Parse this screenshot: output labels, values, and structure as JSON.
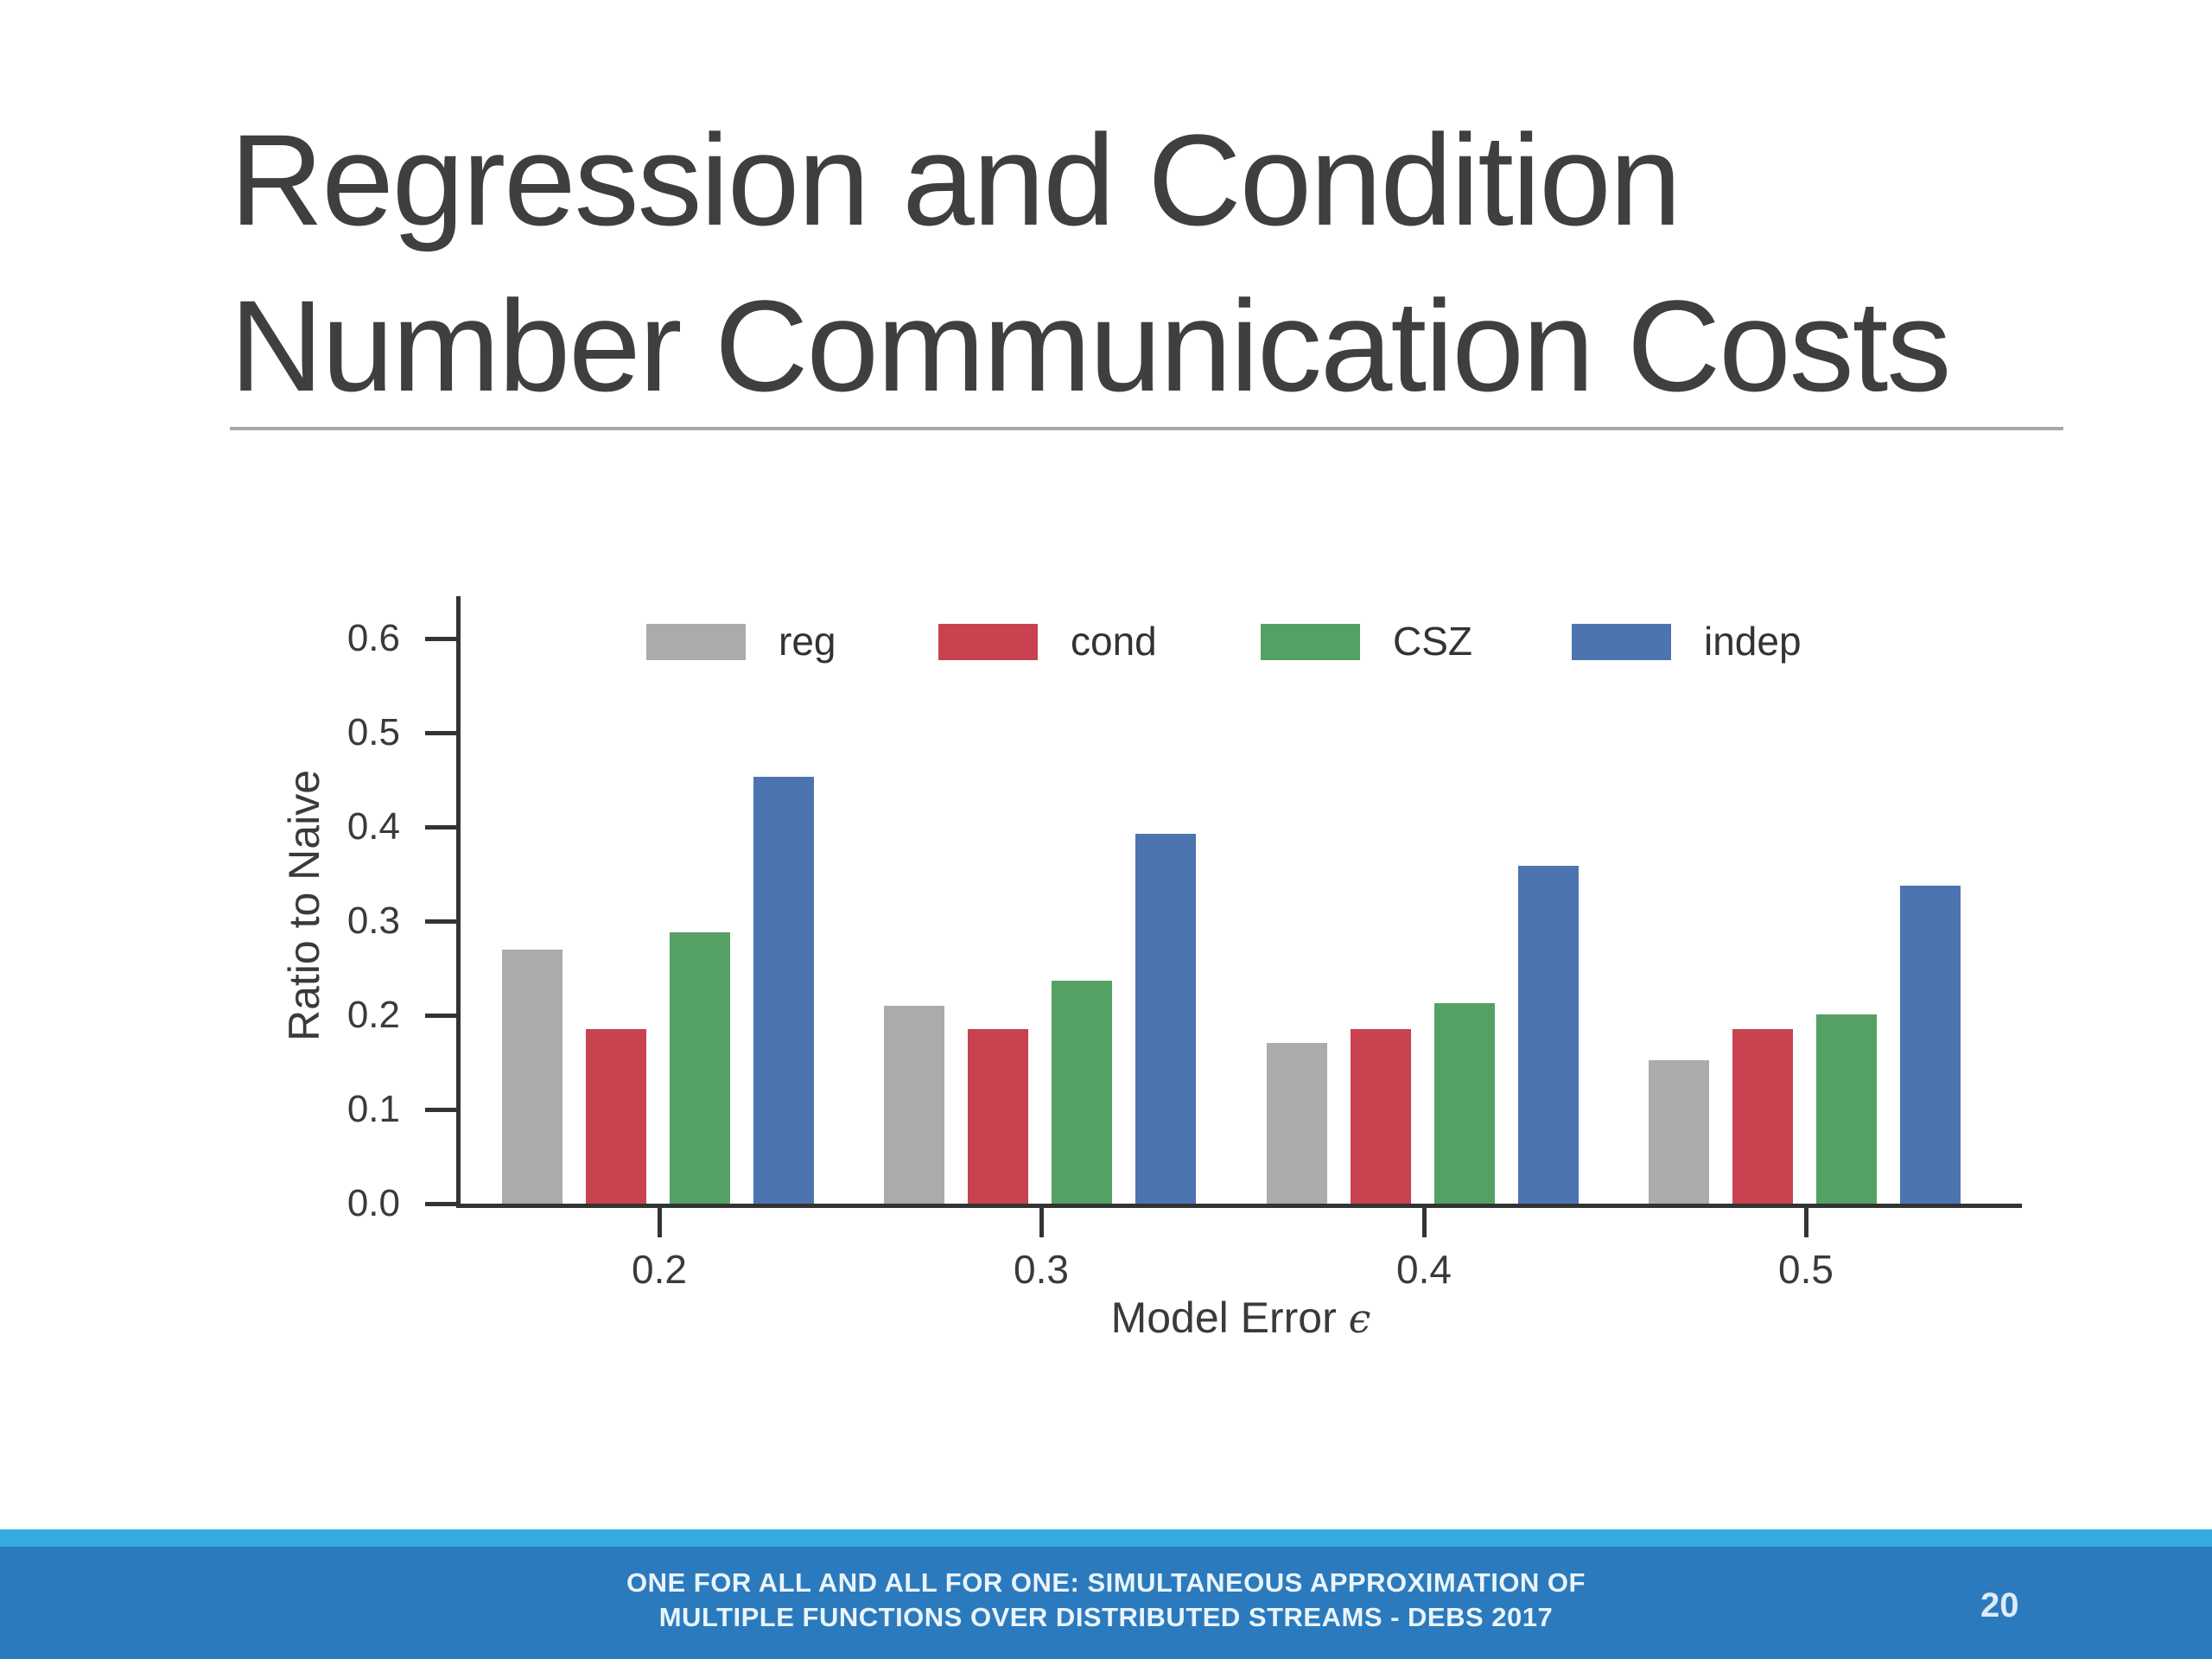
{
  "slide": {
    "title_lines": [
      "Regression and Condition",
      "Number Communication Costs"
    ],
    "footer": {
      "line1": "ONE FOR ALL AND ALL FOR ONE: SIMULTANEOUS APPROXIMATION OF",
      "line2": "MULTIPLE FUNCTIONS OVER DISTRIBUTED STREAMS - DEBS 2017",
      "page_number": "20"
    }
  },
  "colors": {
    "title": "#3F3F3F",
    "title_rule": "#A8A8A8",
    "axis": "#333333",
    "tick_label": "#3A3A3A",
    "footer_strip": "#33ACE2",
    "footer_bar": "#2B7ABD",
    "footer_text": "#EAF4FB"
  },
  "chart_data": {
    "type": "bar",
    "title": "",
    "xlabel": "Model Error ϵ",
    "xlabel_prefix": "Model Error",
    "xlabel_symbol": "ϵ",
    "ylabel": "Ratio to Naive",
    "categories": [
      "0.2",
      "0.3",
      "0.4",
      "0.5"
    ],
    "series": [
      {
        "name": "reg",
        "color": "#ABABAB",
        "values": [
          0.27,
          0.21,
          0.171,
          0.152
        ]
      },
      {
        "name": "cond",
        "color": "#C84250",
        "values": [
          0.185,
          0.185,
          0.185,
          0.185
        ]
      },
      {
        "name": "CSZ",
        "color": "#55A164",
        "values": [
          0.288,
          0.237,
          0.213,
          0.201
        ]
      },
      {
        "name": "indep",
        "color": "#4C74B0",
        "values": [
          0.453,
          0.393,
          0.359,
          0.338
        ]
      }
    ],
    "ylim": [
      0,
      0.65
    ],
    "yticks": [
      0.0,
      0.1,
      0.2,
      0.3,
      0.4,
      0.5,
      0.6
    ],
    "legend_entries": [
      "reg",
      "cond",
      "CSZ",
      "indep"
    ],
    "legend_position": "top-inside",
    "grid": false
  }
}
